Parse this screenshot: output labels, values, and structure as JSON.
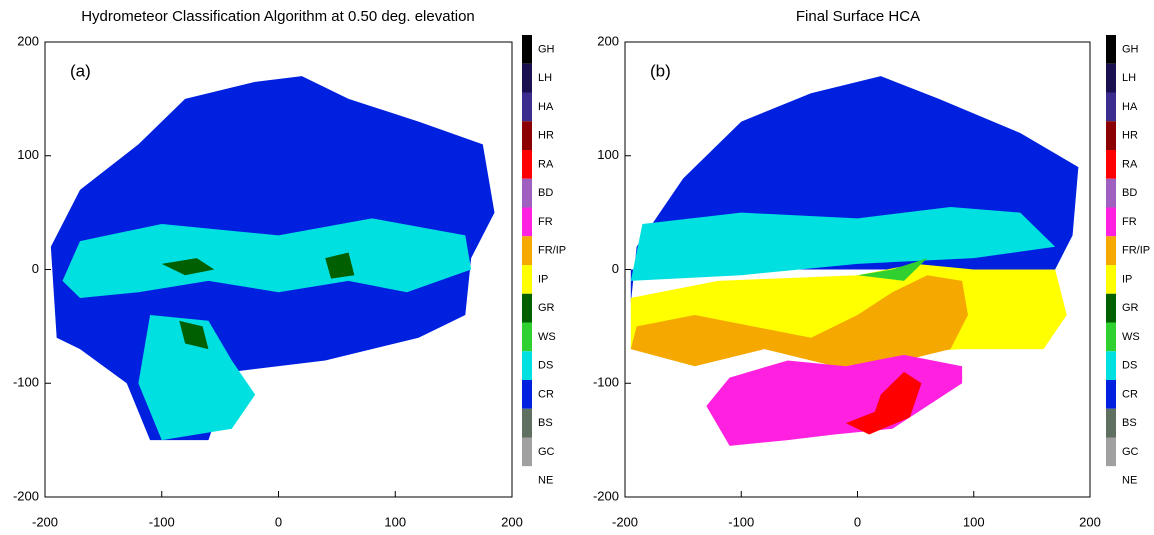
{
  "chart_data": [
    {
      "type": "image",
      "title": "Hydrometeor Classification Algorithm at 0.50 deg. elevation",
      "label": "(a)",
      "xlim": [
        -200,
        200
      ],
      "ylim": [
        -200,
        200
      ],
      "xticks": [
        -200,
        -100,
        0,
        100,
        200
      ],
      "yticks": [
        -200,
        -100,
        0,
        100,
        200
      ],
      "colorbar": {
        "categories": [
          "GH",
          "LH",
          "HA",
          "HR",
          "RA",
          "BD",
          "FR",
          "FR/IP",
          "IP",
          "GR",
          "WS",
          "DS",
          "CR",
          "BS",
          "GC",
          "NE"
        ],
        "colors": [
          "#000000",
          "#1a0f4f",
          "#3a2d8e",
          "#8b0000",
          "#ff0000",
          "#a060c0",
          "#ff20e0",
          "#f5a800",
          "#ffff00",
          "#006000",
          "#30d030",
          "#00e0e0",
          "#0020e0",
          "#607060",
          "#a0a0a0",
          "#ffffff"
        ]
      }
    },
    {
      "type": "image",
      "title": "Final Surface HCA",
      "label": "(b)",
      "xlim": [
        -200,
        200
      ],
      "ylim": [
        -200,
        200
      ],
      "xticks": [
        -200,
        -100,
        0,
        100,
        200
      ],
      "yticks": [
        -200,
        -100,
        0,
        100,
        200
      ],
      "colorbar": {
        "categories": [
          "GH",
          "LH",
          "HA",
          "HR",
          "RA",
          "BD",
          "FR",
          "FR/IP",
          "IP",
          "GR",
          "WS",
          "DS",
          "CR",
          "BS",
          "GC",
          "NE"
        ],
        "colors": [
          "#000000",
          "#1a0f4f",
          "#3a2d8e",
          "#8b0000",
          "#ff0000",
          "#a060c0",
          "#ff20e0",
          "#f5a800",
          "#ffff00",
          "#006000",
          "#30d030",
          "#00e0e0",
          "#0020e0",
          "#607060",
          "#a0a0a0",
          "#ffffff"
        ]
      }
    }
  ]
}
